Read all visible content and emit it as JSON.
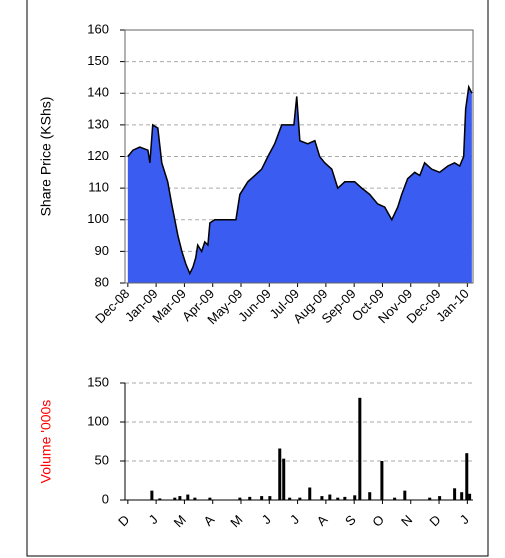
{
  "chart_data": [
    {
      "type": "area",
      "ylabel": "Share Price (KShs)",
      "color": "#3a5cf0",
      "line_color": "#000000",
      "x": [
        0,
        0.18,
        0.42,
        0.71,
        0.78,
        0.88,
        1.06,
        1.2,
        1.41,
        1.55,
        1.66,
        1.77,
        1.91,
        2.05,
        2.19,
        2.3,
        2.4,
        2.47,
        2.61,
        2.72,
        2.83,
        2.9,
        3.07,
        3.43,
        3.82,
        3.96,
        4.24,
        4.49,
        4.73,
        4.95,
        5.19,
        5.44,
        5.72,
        5.87,
        5.97,
        6.08,
        6.36,
        6.61,
        6.78,
        6.96,
        7.21,
        7.42,
        7.67,
        8.02,
        8.27,
        8.55,
        8.83,
        9.08,
        9.33,
        9.54,
        9.68,
        9.89,
        10.14,
        10.32,
        10.49,
        10.74,
        11.02,
        11.31,
        11.55,
        11.73,
        11.87,
        11.94,
        12.05,
        12.16
      ],
      "values": [
        120,
        122,
        123,
        122,
        118,
        130,
        129,
        118,
        112,
        105,
        100,
        95,
        90,
        86,
        83,
        85,
        88,
        92,
        90,
        93,
        92,
        99,
        100,
        100,
        100,
        108,
        112,
        114,
        116,
        120,
        124,
        130,
        130,
        130,
        139,
        125,
        124,
        125,
        120,
        118,
        116,
        110,
        112,
        112,
        110,
        108,
        105,
        104,
        100,
        104,
        108,
        113,
        115,
        114,
        118,
        116,
        115,
        117,
        118,
        117,
        120,
        135,
        142,
        140
      ],
      "xlim": [
        -0.1,
        12.2
      ],
      "xticks": [
        {
          "value": 0,
          "label": "Dec-08"
        },
        {
          "value": 1,
          "label": "Jan-09"
        },
        {
          "value": 2,
          "label": "Mar-09"
        },
        {
          "value": 3,
          "label": "Apr-09"
        },
        {
          "value": 4,
          "label": "May-09"
        },
        {
          "value": 5,
          "label": "Jun-09"
        },
        {
          "value": 6,
          "label": "Jul-09"
        },
        {
          "value": 7,
          "label": "Aug-09"
        },
        {
          "value": 8,
          "label": "Sep-09"
        },
        {
          "value": 9,
          "label": "Oct-09"
        },
        {
          "value": 10,
          "label": "Nov-09"
        },
        {
          "value": 11,
          "label": "Dec-09"
        },
        {
          "value": 12,
          "label": "Jan-10"
        }
      ],
      "ylim": [
        80,
        160
      ],
      "yticks": [
        80,
        90,
        100,
        110,
        120,
        130,
        140,
        150,
        160
      ],
      "grid": true
    },
    {
      "type": "bar",
      "ylabel": "Volume '000s",
      "ylabel_color": "#ff0000",
      "color": "#000000",
      "x": [
        0.85,
        1.13,
        1.66,
        1.84,
        2.12,
        2.37,
        2.9,
        3.96,
        4.31,
        4.73,
        5.02,
        5.37,
        5.51,
        5.72,
        6.08,
        6.43,
        6.86,
        7.14,
        7.42,
        7.67,
        8.02,
        8.2,
        8.55,
        8.98,
        9.43,
        9.79,
        10.67,
        11.02,
        11.55,
        11.8,
        11.98,
        12.08
      ],
      "values": [
        12,
        2,
        3,
        5,
        7,
        3,
        3,
        3,
        4,
        5,
        5,
        66,
        53,
        3,
        3,
        16,
        5,
        7,
        3,
        4,
        6,
        131,
        10,
        50,
        3,
        12,
        3,
        5,
        15,
        10,
        60,
        8
      ],
      "xlim": [
        -0.1,
        12.2
      ],
      "xticks": [
        {
          "value": 0,
          "label": "D"
        },
        {
          "value": 1,
          "label": "J"
        },
        {
          "value": 2,
          "label": "M"
        },
        {
          "value": 3,
          "label": "A"
        },
        {
          "value": 4,
          "label": "M"
        },
        {
          "value": 5,
          "label": "J"
        },
        {
          "value": 6,
          "label": "J"
        },
        {
          "value": 7,
          "label": "A"
        },
        {
          "value": 8,
          "label": "S"
        },
        {
          "value": 9,
          "label": "O"
        },
        {
          "value": 10,
          "label": "N"
        },
        {
          "value": 11,
          "label": "D"
        },
        {
          "value": 12,
          "label": "J"
        }
      ],
      "ylim": [
        0,
        150
      ],
      "yticks": [
        0,
        50,
        100,
        150
      ],
      "grid": true
    }
  ]
}
